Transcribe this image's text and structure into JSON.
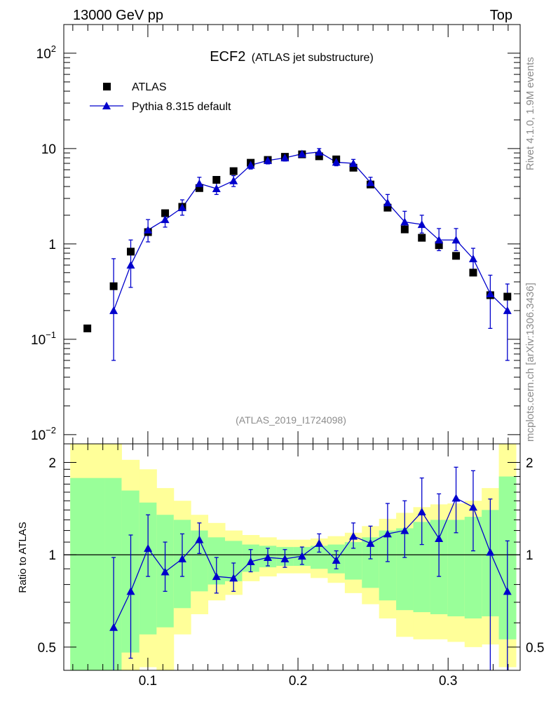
{
  "header": {
    "left": "13000 GeV pp",
    "right": "Top"
  },
  "side": {
    "rivet": "Rivet 4.1.0,  1.9M events",
    "mcplots": "mcplots.cern.ch [arXiv:1306.3436]"
  },
  "chart_data": {
    "type": "scatter",
    "title": "ECF2",
    "subtitle": "(ATLAS jet substructure)",
    "analysis_id": "(ATLAS_2019_I1724098)",
    "xlim": [
      0.044,
      0.348
    ],
    "ylim": [
      0.008,
      200
    ],
    "yscale": "log",
    "ytick_labels": [
      {
        "value": 100,
        "base": "10",
        "exp": "2"
      },
      {
        "value": 10,
        "base": "10",
        "exp": ""
      },
      {
        "value": 1,
        "base": "1",
        "exp": ""
      },
      {
        "value": 0.1,
        "base": "10",
        "exp": "−1"
      },
      {
        "value": 0.01,
        "base": "10",
        "exp": "−2"
      }
    ],
    "legend": [
      "ATLAS",
      "Pythia 8.315 default"
    ],
    "series": [
      {
        "name": "ATLAS",
        "x": [
          0.0597,
          0.0772,
          0.0886,
          0.1001,
          0.1115,
          0.1229,
          0.1343,
          0.1457,
          0.1571,
          0.1685,
          0.1799,
          0.1913,
          0.2027,
          0.2141,
          0.2255,
          0.2369,
          0.2483,
          0.2597,
          0.2711,
          0.2825,
          0.2939,
          0.3053,
          0.3167,
          0.3281,
          0.3395
        ],
        "values": [
          0.13,
          0.36,
          0.83,
          1.33,
          2.1,
          2.45,
          3.85,
          4.7,
          5.8,
          7.1,
          7.6,
          8.2,
          8.7,
          8.3,
          7.7,
          6.3,
          4.2,
          2.4,
          1.42,
          1.16,
          0.97,
          0.75,
          0.5,
          0.29,
          0.28
        ]
      },
      {
        "name": "Pythia 8.315 default",
        "x": [
          0.0772,
          0.0886,
          0.1001,
          0.1115,
          0.1229,
          0.1343,
          0.1457,
          0.1571,
          0.1685,
          0.1799,
          0.1913,
          0.2027,
          0.2141,
          0.2255,
          0.2369,
          0.2483,
          0.2597,
          0.2711,
          0.2825,
          0.2939,
          0.3053,
          0.3167,
          0.3281,
          0.3395
        ],
        "values": [
          0.2,
          0.6,
          1.4,
          1.8,
          2.4,
          4.3,
          3.8,
          4.6,
          6.7,
          7.5,
          8.0,
          8.8,
          9.2,
          7.2,
          7.0,
          4.4,
          2.7,
          1.7,
          1.6,
          1.1,
          1.1,
          0.7,
          0.3,
          0.2
        ],
        "err_lo": [
          0.14,
          0.25,
          0.35,
          0.3,
          0.4,
          0.6,
          0.5,
          0.6,
          0.6,
          0.6,
          0.6,
          0.6,
          0.7,
          0.6,
          0.6,
          0.5,
          0.35,
          0.3,
          0.3,
          0.25,
          0.25,
          0.2,
          0.17,
          0.14
        ],
        "err_hi": [
          0.5,
          0.5,
          0.4,
          0.4,
          0.5,
          0.7,
          0.6,
          0.6,
          0.6,
          0.6,
          0.6,
          0.6,
          0.8,
          0.6,
          0.7,
          0.6,
          0.6,
          0.5,
          0.4,
          0.35,
          0.35,
          0.2,
          0.17,
          0.18
        ]
      }
    ],
    "ratio": {
      "ylabel": "Ratio to ATLAS",
      "ylim": [
        0.42,
        2.3
      ],
      "ytick_labels": [
        {
          "value": 2,
          "text": "2"
        },
        {
          "value": 1,
          "text": "1"
        },
        {
          "value": 0.5,
          "text": "0.5"
        }
      ],
      "xtick_labels": [
        {
          "value": 0.1,
          "text": "0.1"
        },
        {
          "value": 0.2,
          "text": "0.2"
        },
        {
          "value": 0.3,
          "text": "0.3"
        }
      ],
      "band_edges": [
        0.0483,
        0.0711,
        0.0825,
        0.0943,
        0.1058,
        0.1172,
        0.1286,
        0.14,
        0.1514,
        0.1628,
        0.1742,
        0.1856,
        0.197,
        0.2084,
        0.2198,
        0.2312,
        0.2426,
        0.254,
        0.2654,
        0.2768,
        0.2882,
        0.2996,
        0.311,
        0.3224,
        0.3338,
        0.3452
      ],
      "yellow_band": {
        "lo": [
          0.3,
          0.3,
          0.35,
          0.43,
          0.38,
          0.55,
          0.64,
          0.71,
          0.74,
          0.82,
          0.85,
          0.87,
          0.87,
          0.84,
          0.81,
          0.75,
          0.69,
          0.62,
          0.54,
          0.53,
          0.53,
          0.52,
          0.5,
          0.51,
          0.43
        ],
        "hi": [
          2.3,
          2.3,
          2.04,
          1.9,
          1.65,
          1.5,
          1.35,
          1.27,
          1.2,
          1.16,
          1.14,
          1.12,
          1.12,
          1.13,
          1.15,
          1.18,
          1.24,
          1.31,
          1.37,
          1.43,
          1.46,
          1.47,
          1.5,
          1.65,
          2.3
        ]
      },
      "green_band": {
        "lo": [
          0.3,
          0.3,
          0.48,
          0.55,
          0.58,
          0.67,
          0.76,
          0.8,
          0.82,
          0.88,
          0.91,
          0.92,
          0.92,
          0.9,
          0.87,
          0.83,
          0.78,
          0.71,
          0.66,
          0.65,
          0.64,
          0.63,
          0.62,
          0.63,
          0.53
        ],
        "hi": [
          1.78,
          1.78,
          1.62,
          1.48,
          1.35,
          1.3,
          1.2,
          1.14,
          1.11,
          1.08,
          1.07,
          1.06,
          1.06,
          1.07,
          1.08,
          1.1,
          1.14,
          1.2,
          1.22,
          1.28,
          1.3,
          1.3,
          1.33,
          1.4,
          1.8
        ]
      },
      "mc_x": [
        0.0772,
        0.0886,
        0.1001,
        0.1115,
        0.1229,
        0.1343,
        0.1457,
        0.1571,
        0.1685,
        0.1799,
        0.1913,
        0.2027,
        0.2141,
        0.2255,
        0.2369,
        0.2483,
        0.2597,
        0.2711,
        0.2825,
        0.2939,
        0.3053,
        0.3167,
        0.3281,
        0.3395
      ],
      "mc_values": [
        0.58,
        0.76,
        1.05,
        0.88,
        0.97,
        1.12,
        0.85,
        0.84,
        0.95,
        0.98,
        0.97,
        0.99,
        1.09,
        0.96,
        1.15,
        1.09,
        1.17,
        1.2,
        1.38,
        1.13,
        1.53,
        1.43,
        1.02,
        0.76
      ],
      "mc_err_lo": [
        0.3,
        0.3,
        0.2,
        0.12,
        0.12,
        0.11,
        0.1,
        0.08,
        0.07,
        0.06,
        0.06,
        0.06,
        0.07,
        0.06,
        0.1,
        0.12,
        0.22,
        0.22,
        0.3,
        0.28,
        0.35,
        0.4,
        0.6,
        0.35
      ],
      "mc_err_hi": [
        0.4,
        0.4,
        0.3,
        0.22,
        0.2,
        0.15,
        0.13,
        0.1,
        0.09,
        0.07,
        0.07,
        0.07,
        0.08,
        0.07,
        0.12,
        0.15,
        0.3,
        0.3,
        0.4,
        0.45,
        0.4,
        0.45,
        0.5,
        0.35
      ]
    },
    "colors": {
      "data": "#000000",
      "mc": "#0000cc",
      "yellow": "#ffff99",
      "green": "#99ff99",
      "grayText": "#8c8c8c"
    }
  }
}
